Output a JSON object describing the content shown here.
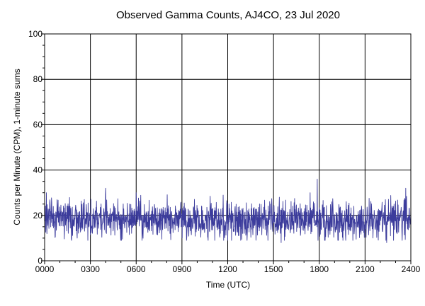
{
  "chart_data": {
    "type": "line",
    "title": "Observed Gamma Counts, AJ4CO, 23 Jul 2020",
    "xlabel": "Time (UTC)",
    "ylabel": "Counts per Minute (CPM), 1-minute sums",
    "xlim": [
      0,
      1440
    ],
    "ylim": [
      0,
      100
    ],
    "x_ticks": [
      {
        "value": 0,
        "label": "0000"
      },
      {
        "value": 180,
        "label": "0300"
      },
      {
        "value": 360,
        "label": "0600"
      },
      {
        "value": 540,
        "label": "0900"
      },
      {
        "value": 720,
        "label": "1200"
      },
      {
        "value": 900,
        "label": "1500"
      },
      {
        "value": 1080,
        "label": "1800"
      },
      {
        "value": 1260,
        "label": "2100"
      },
      {
        "value": 1440,
        "label": "2400"
      }
    ],
    "y_ticks": [
      {
        "value": 0,
        "label": "0"
      },
      {
        "value": 20,
        "label": "20"
      },
      {
        "value": 40,
        "label": "40"
      },
      {
        "value": 60,
        "label": "60"
      },
      {
        "value": 80,
        "label": "80"
      },
      {
        "value": 100,
        "label": "100"
      }
    ],
    "grid": true,
    "colors": {
      "series": "#3c3c9c",
      "grid": "#000000"
    },
    "series": [
      {
        "name": "",
        "sampling_interval_minutes": 1,
        "mean": 18,
        "stdev": 4.2,
        "min": 8,
        "max": 36,
        "notable_points": [
          {
            "x": 240,
            "y": 32
          },
          {
            "x": 360,
            "y": 30
          },
          {
            "x": 1072,
            "y": 36
          },
          {
            "x": 1420,
            "y": 32
          },
          {
            "x": 1345,
            "y": 8
          },
          {
            "x": 930,
            "y": 8
          }
        ]
      }
    ]
  }
}
